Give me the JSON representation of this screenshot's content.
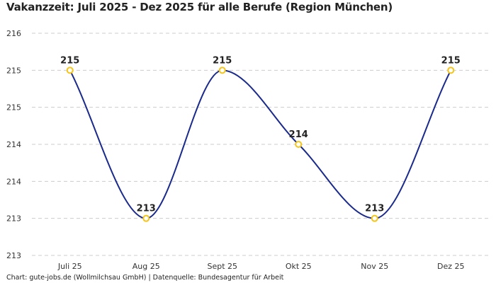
{
  "chart_data": {
    "type": "line",
    "title": "Vakanzzeit: Juli 2025 - Dez 2025 für alle Berufe (Region München)",
    "categories": [
      "Juli 25",
      "Aug 25",
      "Sept 25",
      "Okt 25",
      "Nov 25",
      "Dez 25"
    ],
    "values": [
      215,
      213,
      215,
      214,
      213,
      215
    ],
    "data_labels": [
      "215",
      "213",
      "215",
      "214",
      "213",
      "215"
    ],
    "ylim": [
      212.5,
      215.5
    ],
    "y_ticks": [
      215.5,
      215,
      214.5,
      214,
      213.5,
      213,
      212.5
    ],
    "y_tick_labels": [
      "216",
      "215",
      "215",
      "214",
      "214",
      "213",
      "213"
    ],
    "xlabel": "",
    "ylabel": "",
    "grid": "horizontal dashed",
    "line_color": "#1a2a8c",
    "marker_color": "#f5c518",
    "smooth": true
  },
  "footer": "Chart: gute-jobs.de (Wollmilchsau GmbH) | Datenquelle: Bundesagentur für Arbeit"
}
